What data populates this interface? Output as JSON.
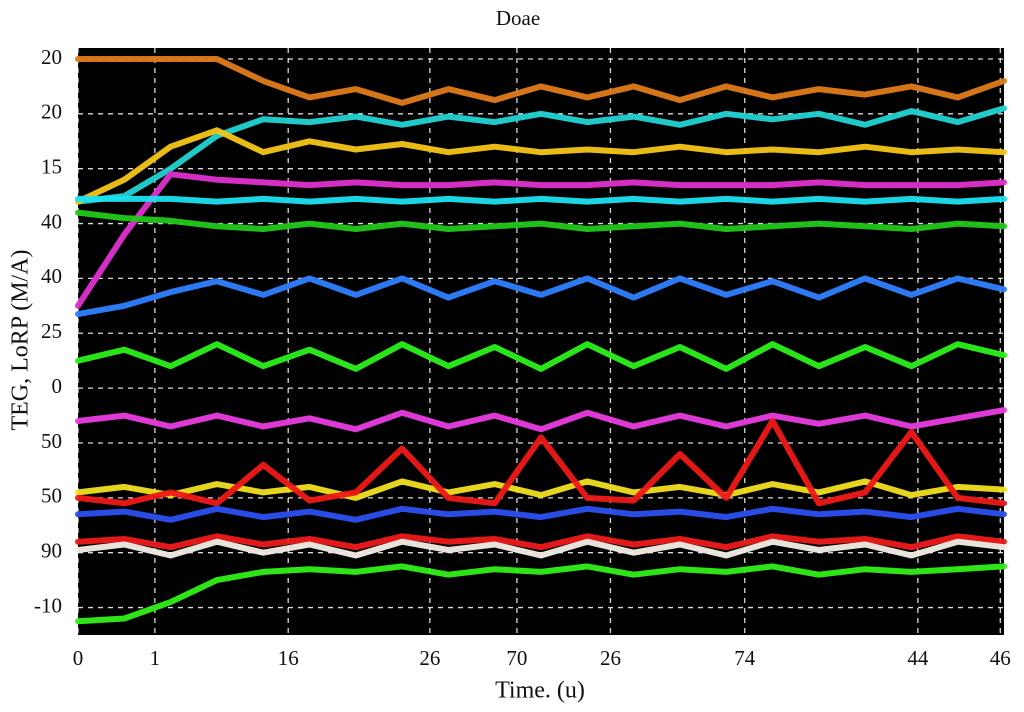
{
  "chart_data": {
    "type": "line",
    "title": "Doae",
    "x_label": "Time. (u)",
    "y_label": "TEG, LoRP (M/A)",
    "xlim": [
      0,
      100
    ],
    "ylim": [
      -0.5,
      10.2
    ],
    "xticks": [
      {
        "value": 0,
        "label": "0"
      },
      {
        "value": 8.3,
        "label": "1"
      },
      {
        "value": 22.7,
        "label": "16"
      },
      {
        "value": 38.0,
        "label": "26"
      },
      {
        "value": 47.4,
        "label": "70"
      },
      {
        "value": 57.5,
        "label": "26"
      },
      {
        "value": 72.0,
        "label": "74"
      },
      {
        "value": 90.7,
        "label": "44"
      },
      {
        "value": 99.6,
        "label": "46"
      }
    ],
    "yticks": [
      {
        "value": 0,
        "label": "-10"
      },
      {
        "value": 1,
        "label": "90"
      },
      {
        "value": 2,
        "label": "50"
      },
      {
        "value": 3,
        "label": "50"
      },
      {
        "value": 4,
        "label": "0"
      },
      {
        "value": 5,
        "label": "25"
      },
      {
        "value": 6,
        "label": "40"
      },
      {
        "value": 7,
        "label": "40"
      },
      {
        "value": 8,
        "label": "15"
      },
      {
        "value": 9,
        "label": "20"
      },
      {
        "value": 10,
        "label": "20"
      }
    ],
    "grid": true,
    "background": "#000000",
    "x": [
      0,
      5,
      10,
      15,
      20,
      25,
      30,
      35,
      40,
      45,
      50,
      55,
      60,
      65,
      70,
      75,
      80,
      85,
      90,
      95,
      100
    ],
    "series": [
      {
        "color": "#e07b1a",
        "values": [
          10.0,
          10.0,
          10.0,
          10.0,
          9.6,
          9.3,
          9.45,
          9.2,
          9.45,
          9.25,
          9.5,
          9.3,
          9.5,
          9.25,
          9.5,
          9.3,
          9.45,
          9.35,
          9.5,
          9.3,
          9.6
        ]
      },
      {
        "color": "#22d3d3",
        "values": [
          7.4,
          7.5,
          8.0,
          8.6,
          8.9,
          8.85,
          8.95,
          8.8,
          8.95,
          8.85,
          9.0,
          8.85,
          8.95,
          8.8,
          9.0,
          8.9,
          9.0,
          8.8,
          9.05,
          8.85,
          9.1
        ]
      },
      {
        "color": "#f5c518",
        "values": [
          7.4,
          7.8,
          8.4,
          8.7,
          8.3,
          8.5,
          8.35,
          8.45,
          8.3,
          8.4,
          8.3,
          8.35,
          8.3,
          8.4,
          8.3,
          8.35,
          8.3,
          8.4,
          8.3,
          8.35,
          8.3
        ]
      },
      {
        "color": "#e030d0",
        "values": [
          5.5,
          6.8,
          7.9,
          7.8,
          7.75,
          7.7,
          7.75,
          7.7,
          7.7,
          7.75,
          7.7,
          7.7,
          7.75,
          7.7,
          7.7,
          7.7,
          7.75,
          7.7,
          7.7,
          7.7,
          7.75
        ]
      },
      {
        "color": "#1ee0f0",
        "values": [
          7.45,
          7.45,
          7.45,
          7.4,
          7.45,
          7.4,
          7.45,
          7.4,
          7.45,
          7.4,
          7.45,
          7.4,
          7.45,
          7.4,
          7.45,
          7.4,
          7.45,
          7.4,
          7.45,
          7.4,
          7.45
        ]
      },
      {
        "color": "#22c81a",
        "values": [
          7.2,
          7.1,
          7.05,
          6.95,
          6.9,
          7.0,
          6.9,
          7.0,
          6.9,
          6.95,
          7.0,
          6.9,
          6.95,
          7.0,
          6.9,
          6.95,
          7.0,
          6.95,
          6.9,
          7.0,
          6.95
        ]
      },
      {
        "color": "#2f7fff",
        "values": [
          5.35,
          5.5,
          5.75,
          5.95,
          5.7,
          6.0,
          5.7,
          6.0,
          5.65,
          5.95,
          5.7,
          6.0,
          5.65,
          6.0,
          5.7,
          5.95,
          5.65,
          6.0,
          5.7,
          6.0,
          5.8
        ]
      },
      {
        "color": "#2af01a",
        "values": [
          4.5,
          4.7,
          4.4,
          4.8,
          4.4,
          4.7,
          4.35,
          4.8,
          4.4,
          4.75,
          4.35,
          4.8,
          4.4,
          4.75,
          4.35,
          4.8,
          4.4,
          4.75,
          4.4,
          4.8,
          4.6
        ]
      },
      {
        "color": "#e83ce0",
        "values": [
          3.4,
          3.5,
          3.3,
          3.5,
          3.3,
          3.45,
          3.25,
          3.55,
          3.3,
          3.5,
          3.25,
          3.55,
          3.3,
          3.5,
          3.3,
          3.5,
          3.35,
          3.5,
          3.3,
          3.45,
          3.6
        ]
      },
      {
        "color": "#f2e020",
        "values": [
          2.1,
          2.2,
          2.05,
          2.25,
          2.1,
          2.2,
          2.0,
          2.3,
          2.1,
          2.25,
          2.05,
          2.3,
          2.1,
          2.2,
          2.05,
          2.25,
          2.1,
          2.3,
          2.05,
          2.2,
          2.15
        ]
      },
      {
        "color": "#f01818",
        "values": [
          2.0,
          1.9,
          2.1,
          1.9,
          2.6,
          1.95,
          2.1,
          2.9,
          2.0,
          1.9,
          3.1,
          2.0,
          1.95,
          2.8,
          2.0,
          3.4,
          1.9,
          2.1,
          3.2,
          2.0,
          1.9
        ]
      },
      {
        "color": "#2a50f0",
        "values": [
          1.7,
          1.75,
          1.6,
          1.8,
          1.65,
          1.75,
          1.6,
          1.8,
          1.7,
          1.75,
          1.65,
          1.8,
          1.7,
          1.75,
          1.65,
          1.8,
          1.7,
          1.75,
          1.65,
          1.8,
          1.7
        ]
      },
      {
        "color": "#ee1a1a",
        "values": [
          1.2,
          1.25,
          1.1,
          1.3,
          1.15,
          1.25,
          1.1,
          1.3,
          1.2,
          1.25,
          1.1,
          1.3,
          1.15,
          1.25,
          1.1,
          1.3,
          1.2,
          1.25,
          1.1,
          1.3,
          1.2
        ]
      },
      {
        "color": "#f4efe6",
        "values": [
          1.05,
          1.15,
          0.95,
          1.2,
          1.0,
          1.15,
          0.95,
          1.2,
          1.05,
          1.15,
          0.95,
          1.2,
          1.0,
          1.15,
          0.95,
          1.2,
          1.05,
          1.15,
          0.95,
          1.2,
          1.1
        ]
      },
      {
        "color": "#30f018",
        "values": [
          -0.25,
          -0.2,
          0.1,
          0.5,
          0.65,
          0.7,
          0.65,
          0.75,
          0.6,
          0.7,
          0.65,
          0.75,
          0.6,
          0.7,
          0.65,
          0.75,
          0.6,
          0.7,
          0.65,
          0.7,
          0.75
        ]
      }
    ]
  }
}
